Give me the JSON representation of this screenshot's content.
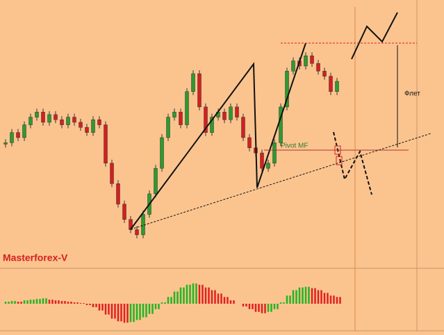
{
  "chart_data": [
    {
      "type": "candlestick",
      "title": "Masterforex-V",
      "annotations": [
        "Pivot MF",
        "Флет"
      ],
      "up_color": "#2e9a2e",
      "down_color": "#d42020",
      "closes": [
        48,
        52,
        50,
        55,
        58,
        60,
        56,
        59,
        57,
        55,
        58,
        56,
        54,
        52,
        57,
        55,
        40,
        32,
        24,
        18,
        14,
        12,
        20,
        28,
        38,
        50,
        58,
        60,
        55,
        68,
        75,
        62,
        52,
        58,
        60,
        57,
        62,
        58,
        50,
        46,
        44,
        38,
        40,
        48,
        62,
        76,
        80,
        78,
        82,
        79,
        76,
        74,
        68,
        72
      ],
      "ylim": [
        0,
        100
      ]
    },
    {
      "type": "bar",
      "up_color": "#22b422",
      "down_color": "#e02020",
      "values": [
        3,
        4,
        3,
        5,
        6,
        7,
        8,
        6,
        5,
        4,
        3,
        2,
        1,
        -2,
        -5,
        -10,
        -16,
        -22,
        -26,
        -28,
        -27,
        -24,
        -20,
        -15,
        -8,
        2,
        10,
        18,
        24,
        28,
        30,
        28,
        24,
        20,
        15,
        10,
        5,
        0,
        -4,
        -8,
        -12,
        -14,
        -12,
        -8,
        2,
        12,
        20,
        24,
        25,
        23,
        20,
        16,
        12,
        10
      ],
      "ylim": [
        -40,
        40
      ]
    }
  ]
}
